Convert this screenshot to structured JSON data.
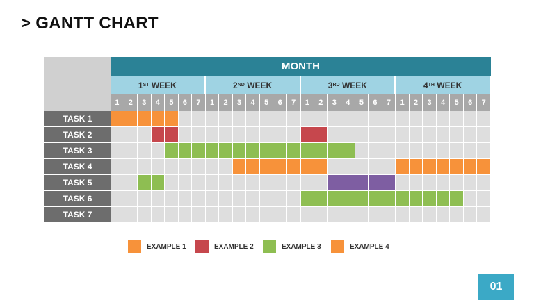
{
  "title": "> GANTT CHART",
  "month_label": "MONTH",
  "weeks": [
    {
      "num": "1",
      "sup": "ST",
      "word": "WEEK"
    },
    {
      "num": "2",
      "sup": "ND",
      "word": "WEEK"
    },
    {
      "num": "3",
      "sup": "RD",
      "word": "WEEK"
    },
    {
      "num": "4",
      "sup": "TH",
      "word": "WEEK"
    }
  ],
  "days": [
    "1",
    "2",
    "3",
    "4",
    "5",
    "6",
    "7"
  ],
  "colors": {
    "example1": "#f7923a",
    "example2": "#c6474d",
    "example3": "#8ebe52",
    "example4": "#f7923a",
    "example5": "#7e5ea2"
  },
  "tasks": [
    {
      "label": "TASK 1",
      "bars": [
        {
          "start": 1,
          "end": 5,
          "color": "example1"
        }
      ]
    },
    {
      "label": "TASK 2",
      "bars": [
        {
          "start": 4,
          "end": 5,
          "color": "example2"
        },
        {
          "start": 15,
          "end": 16,
          "color": "example2"
        }
      ]
    },
    {
      "label": "TASK 3",
      "bars": [
        {
          "start": 5,
          "end": 18,
          "color": "example3"
        }
      ]
    },
    {
      "label": "TASK 4",
      "bars": [
        {
          "start": 10,
          "end": 16,
          "color": "example4"
        },
        {
          "start": 22,
          "end": 28,
          "color": "example4"
        }
      ]
    },
    {
      "label": "TASK 5",
      "bars": [
        {
          "start": 3,
          "end": 4,
          "color": "example3"
        },
        {
          "start": 17,
          "end": 21,
          "color": "example5"
        }
      ]
    },
    {
      "label": "TASK 6",
      "bars": [
        {
          "start": 15,
          "end": 26,
          "color": "example3"
        }
      ]
    },
    {
      "label": "TASK 7",
      "bars": []
    }
  ],
  "legend": [
    {
      "label": "EXAMPLE 1",
      "color": "#f7923a"
    },
    {
      "label": "EXAMPLE 2",
      "color": "#c6474d"
    },
    {
      "label": "EXAMPLE 3",
      "color": "#8ebe52"
    },
    {
      "label": "EXAMPLE 4",
      "color": "#f7923a"
    }
  ],
  "page_number": "01"
}
